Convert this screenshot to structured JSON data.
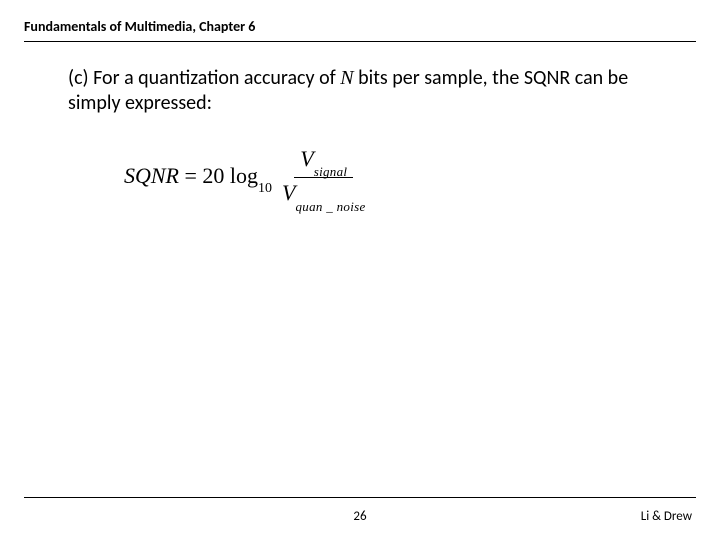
{
  "header": {
    "title": "Fundamentals of Multimedia, Chapter 6"
  },
  "body": {
    "prefix": "(c) For a quantization accuracy of ",
    "variable": "N",
    "suffix": " bits per sample, the SQNR can be simply expressed:"
  },
  "equation": {
    "lhs_sqnr": "SQNR",
    "equals": " = ",
    "coeff": "20",
    "log": " log",
    "log_sub": "10",
    "num_V": "V",
    "num_sub": "signal",
    "den_V": "V",
    "den_sub": "quan _ noise"
  },
  "footer": {
    "page_number": "26",
    "authors": "Li & Drew"
  },
  "style": {
    "background_color": "#ffffff",
    "text_color": "#000000",
    "body_fontsize": 20,
    "header_fontsize": 14,
    "equation_fontsize": 22,
    "footer_fontsize": 13
  }
}
